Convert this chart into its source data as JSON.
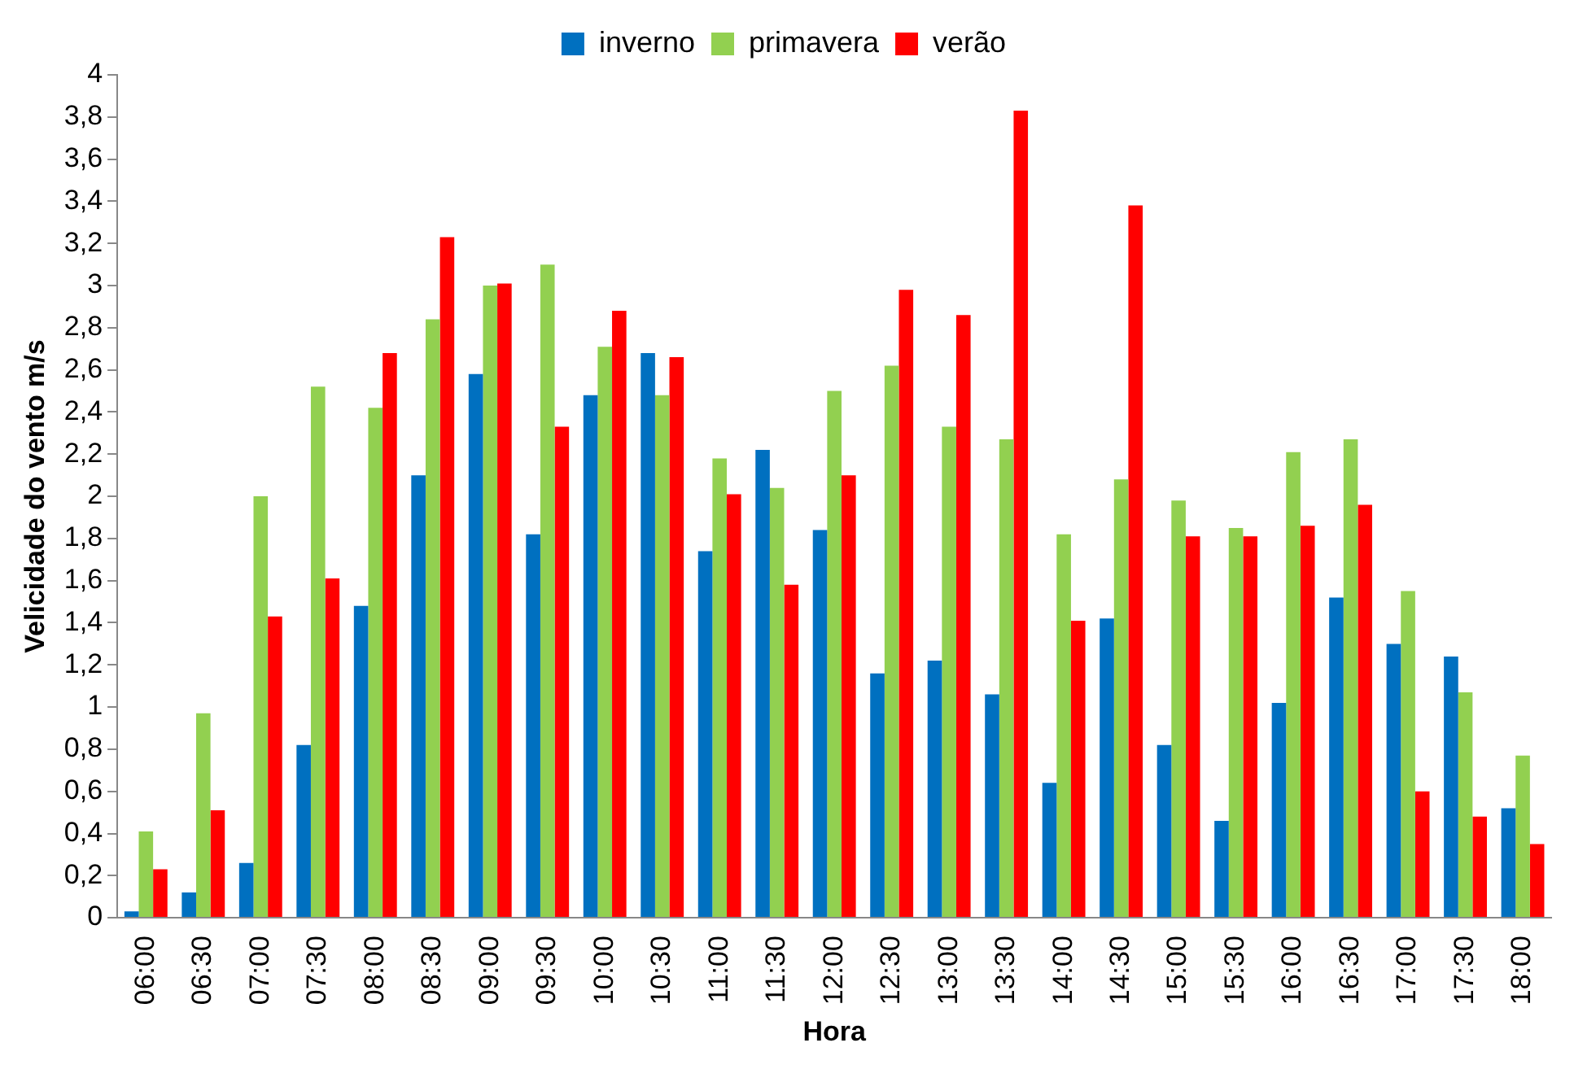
{
  "chart_data": {
    "type": "bar",
    "xlabel": "Hora",
    "ylabel": "Velicidade do vento m/s",
    "categories": [
      "06:00",
      "06:30",
      "07:00",
      "07:30",
      "08:00",
      "08:30",
      "09:00",
      "09:30",
      "10:00",
      "10:30",
      "11:00",
      "11:30",
      "12:00",
      "12:30",
      "13:00",
      "13:30",
      "14:00",
      "14:30",
      "15:00",
      "15:30",
      "16:00",
      "16:30",
      "17:00",
      "17:30",
      "18:00"
    ],
    "series": [
      {
        "name": "inverno",
        "color": "#0070c0",
        "values": [
          0.03,
          0.12,
          0.26,
          0.82,
          1.48,
          2.1,
          2.58,
          1.82,
          2.48,
          2.68,
          1.74,
          2.22,
          1.84,
          1.16,
          1.22,
          1.06,
          0.64,
          1.42,
          0.82,
          0.46,
          1.02,
          1.52,
          1.3,
          1.24,
          0.52
        ]
      },
      {
        "name": "primavera",
        "color": "#92d050",
        "values": [
          0.41,
          0.97,
          2.0,
          2.52,
          2.42,
          2.84,
          3.0,
          3.1,
          2.71,
          2.48,
          2.18,
          2.04,
          2.5,
          2.62,
          2.33,
          2.27,
          1.82,
          2.08,
          1.98,
          1.85,
          2.21,
          2.27,
          1.55,
          1.07,
          0.77
        ]
      },
      {
        "name": "verão",
        "color": "#ff0000",
        "values": [
          0.23,
          0.51,
          1.43,
          1.61,
          2.68,
          3.23,
          3.01,
          2.33,
          2.88,
          2.66,
          2.01,
          1.58,
          2.1,
          2.98,
          2.86,
          3.83,
          1.41,
          3.38,
          1.81,
          1.81,
          1.86,
          1.96,
          0.6,
          0.48,
          0.35
        ]
      }
    ],
    "ylim": [
      0,
      4
    ],
    "yticks": [
      0,
      {
        "value": 0.2,
        "label": "0,2"
      },
      {
        "value": 0.4,
        "label": "0,4"
      },
      {
        "value": 0.6,
        "label": "0,6"
      },
      {
        "value": 0.8,
        "label": "0,8"
      },
      1,
      {
        "value": 1.2,
        "label": "1,2"
      },
      {
        "value": 1.4,
        "label": "1,4"
      },
      {
        "value": 1.6,
        "label": "1,6"
      },
      {
        "value": 1.8,
        "label": "1,8"
      },
      2,
      {
        "value": 2.2,
        "label": "2,2"
      },
      {
        "value": 2.4,
        "label": "2,4"
      },
      {
        "value": 2.6,
        "label": "2,6"
      },
      {
        "value": 2.8,
        "label": "2,8"
      },
      3,
      {
        "value": 3.2,
        "label": "3,2"
      },
      {
        "value": 3.4,
        "label": "3,4"
      },
      {
        "value": 3.6,
        "label": "3,6"
      },
      {
        "value": 3.8,
        "label": "3,8"
      },
      4
    ],
    "grid": false,
    "legend": "top"
  }
}
